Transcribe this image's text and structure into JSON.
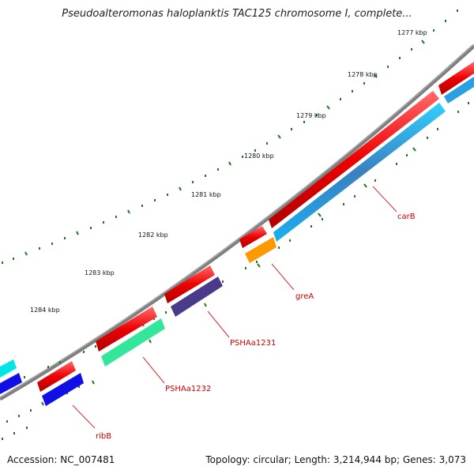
{
  "title": "Pseudoalteromonas haloplanktis TAC125 chromosome I, complete...",
  "footer": {
    "accession": "Accession: NC_007481",
    "summary": "Topology: circular; Length: 3,214,944 bp; Genes: 3,073"
  },
  "colors": {
    "backbone": "#7f7f7f",
    "tick": "#1f7a1f",
    "label_line": "#d43030",
    "label_text": "#cc0000"
  },
  "ticks": [
    {
      "label": "1277 kbp"
    },
    {
      "label": "1278 kbp"
    },
    {
      "label": "1279 kbp"
    },
    {
      "label": "1280 kbp"
    },
    {
      "label": "1281 kbp"
    },
    {
      "label": "1282 kbp"
    },
    {
      "label": "1283 kbp"
    },
    {
      "label": "1284 kbp"
    }
  ],
  "gene_labels": [
    {
      "label": "carB"
    },
    {
      "label": "greA"
    },
    {
      "label": "PSHAa1231"
    },
    {
      "label": "PSHAa1232"
    },
    {
      "label": "ribB"
    }
  ]
}
